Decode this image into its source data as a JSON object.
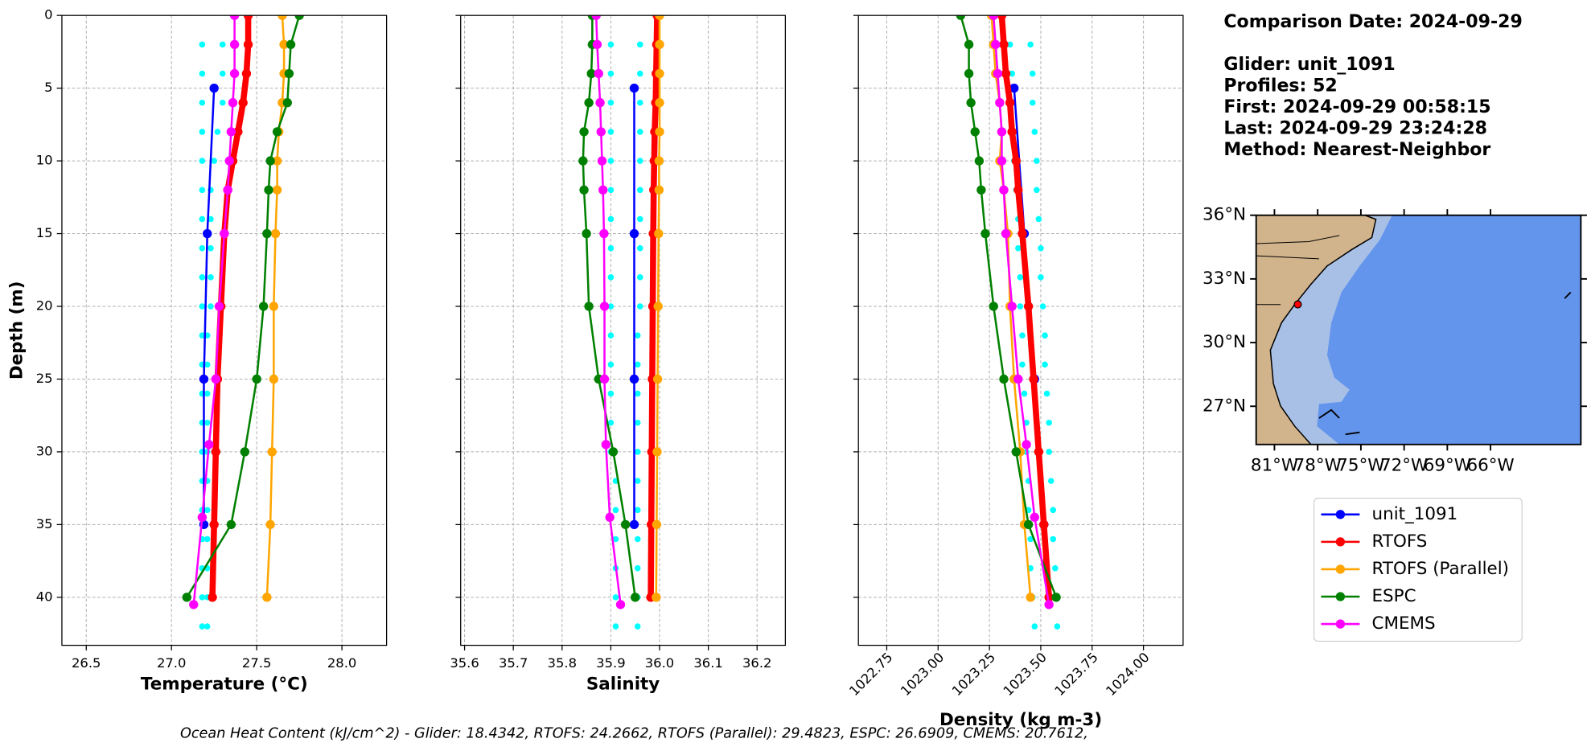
{
  "chart_data": [
    {
      "type": "profile",
      "xlabel": "Temperature (°C)",
      "ylabel": "Depth (m)",
      "xlim": [
        26.357,
        28.262
      ],
      "xticks": [
        26.5,
        {
          "value": 27,
          "label": "27.0"
        },
        27.5,
        {
          "value": 28,
          "label": "28.0"
        }
      ],
      "ylim": [
        43.3,
        0
      ],
      "yticks": [
        0,
        5,
        10,
        15,
        20,
        25,
        30,
        35,
        40
      ],
      "ytick_labels": true,
      "grid": true,
      "raw": [
        {
          "color": "#00ffff",
          "depths": [
            2,
            4,
            6,
            8,
            10,
            12,
            14,
            16,
            18,
            20,
            22,
            24,
            26,
            28,
            30,
            32,
            34,
            36,
            38,
            40,
            42
          ],
          "values": [
            27.18,
            27.18,
            27.18,
            27.18,
            27.18,
            27.18,
            27.18,
            27.18,
            27.18,
            27.18,
            27.18,
            27.18,
            27.18,
            27.18,
            27.18,
            27.18,
            27.18,
            27.18,
            27.18,
            27.18,
            27.18
          ]
        },
        {
          "color": "#00ffff",
          "depths": [
            2,
            4,
            6,
            8,
            10,
            12,
            14,
            16,
            18,
            20,
            22,
            24,
            26,
            28,
            30,
            32,
            34,
            36,
            38,
            40,
            42
          ],
          "values": [
            27.3,
            27.3,
            27.3,
            27.27,
            27.25,
            27.23,
            27.23,
            27.23,
            27.23,
            27.23,
            27.21,
            27.21,
            27.21,
            27.21,
            27.21,
            27.21,
            27.21,
            27.21,
            27.21,
            27.21,
            27.21
          ]
        }
      ],
      "series": [
        {
          "name": "unit_1091",
          "color": "#0000ff",
          "width": 2,
          "depths": [
            5,
            15,
            25,
            35
          ],
          "values": [
            27.25,
            27.21,
            27.19,
            27.19
          ]
        },
        {
          "name": "RTOFS",
          "color": "#ff0000",
          "width": 6,
          "depths": [
            0,
            2,
            4,
            6,
            8,
            10,
            12,
            15,
            20,
            25,
            30,
            35,
            40
          ],
          "values": [
            27.45,
            27.45,
            27.44,
            27.42,
            27.39,
            27.36,
            27.33,
            27.31,
            27.29,
            27.27,
            27.26,
            27.25,
            27.24
          ]
        },
        {
          "name": "RTOFS (Parallel)",
          "color": "#ffa500",
          "width": 2,
          "depths": [
            0,
            2,
            4,
            6,
            8,
            10,
            12,
            15,
            20,
            25,
            30,
            35,
            40
          ],
          "values": [
            27.65,
            27.66,
            27.66,
            27.65,
            27.63,
            27.62,
            27.62,
            27.61,
            27.6,
            27.6,
            27.59,
            27.58,
            27.56
          ]
        },
        {
          "name": "ESPC",
          "color": "#008000",
          "width": 2,
          "depths": [
            0,
            2,
            4,
            6,
            8,
            10,
            12,
            15,
            20,
            25,
            30,
            35,
            40
          ],
          "values": [
            27.75,
            27.7,
            27.69,
            27.68,
            27.62,
            27.58,
            27.57,
            27.56,
            27.54,
            27.5,
            27.43,
            27.35,
            27.09
          ]
        },
        {
          "name": "CMEMS",
          "color": "#ff00ff",
          "width": 2,
          "depths": [
            0,
            2,
            4,
            6,
            8,
            10,
            12,
            15,
            20,
            25,
            29.5,
            34.5,
            40.5
          ],
          "values": [
            27.37,
            27.37,
            27.37,
            27.36,
            27.35,
            27.34,
            27.33,
            27.31,
            27.28,
            27.26,
            27.22,
            27.18,
            27.13
          ]
        }
      ]
    },
    {
      "type": "profile",
      "xlabel": "Salinity",
      "xlim": [
        35.592,
        36.258
      ],
      "xticks": [
        35.6,
        35.7,
        35.8,
        35.9,
        {
          "value": 36,
          "label": "36.0"
        },
        36.1,
        36.2
      ],
      "ylim": [
        43.3,
        0
      ],
      "yticks": [
        0,
        5,
        10,
        15,
        20,
        25,
        30,
        35,
        40
      ],
      "ytick_labels": false,
      "grid": true,
      "raw": [
        {
          "color": "#00ffff",
          "depths": [
            2,
            4,
            6,
            8,
            10,
            12,
            14,
            16,
            18,
            20,
            22,
            24,
            26,
            28,
            30,
            32,
            34,
            36,
            38,
            40,
            42
          ],
          "values": [
            35.9,
            35.9,
            35.9,
            35.9,
            35.9,
            35.9,
            35.9,
            35.9,
            35.9,
            35.9,
            35.9,
            35.9,
            35.9,
            35.9,
            35.9,
            35.91,
            35.91,
            35.91,
            35.91,
            35.91,
            35.91
          ]
        },
        {
          "color": "#00ffff",
          "depths": [
            2,
            4,
            6,
            8,
            10,
            12,
            14,
            16,
            18,
            20,
            22,
            24,
            26,
            28,
            30,
            32,
            34,
            36,
            38,
            40,
            42
          ],
          "values": [
            35.96,
            35.96,
            35.96,
            35.96,
            35.96,
            35.96,
            35.96,
            35.96,
            35.96,
            35.96,
            35.955,
            35.955,
            35.955,
            35.955,
            35.955,
            35.955,
            35.955,
            35.955,
            35.955,
            35.955,
            35.955
          ]
        }
      ],
      "series": [
        {
          "name": "unit_1091",
          "color": "#0000ff",
          "width": 2,
          "depths": [
            5,
            15,
            25,
            35
          ],
          "values": [
            35.948,
            35.948,
            35.948,
            35.948
          ]
        },
        {
          "name": "RTOFS",
          "color": "#ff0000",
          "width": 6,
          "depths": [
            0,
            2,
            4,
            6,
            8,
            10,
            12,
            15,
            20,
            25,
            30,
            35,
            40
          ],
          "values": [
            35.995,
            35.994,
            35.993,
            35.992,
            35.99,
            35.989,
            35.988,
            35.987,
            35.986,
            35.985,
            35.984,
            35.983,
            35.982
          ]
        },
        {
          "name": "RTOFS (Parallel)",
          "color": "#ffa500",
          "width": 2,
          "depths": [
            0,
            2,
            4,
            6,
            8,
            10,
            12,
            15,
            20,
            25,
            30,
            35,
            40
          ],
          "values": [
            36.0,
            36.0,
            36.0,
            36.0,
            36.0,
            35.999,
            35.999,
            35.998,
            35.997,
            35.996,
            35.995,
            35.994,
            35.993
          ]
        },
        {
          "name": "ESPC",
          "color": "#008000",
          "width": 2,
          "depths": [
            0,
            2,
            4,
            6,
            8,
            10,
            12,
            15,
            20,
            25,
            30,
            35,
            40
          ],
          "values": [
            35.862,
            35.862,
            35.86,
            35.855,
            35.845,
            35.843,
            35.845,
            35.85,
            35.855,
            35.875,
            35.905,
            35.93,
            35.95
          ]
        },
        {
          "name": "CMEMS",
          "color": "#ff00ff",
          "width": 2,
          "depths": [
            0,
            2,
            4,
            6,
            8,
            10,
            12,
            15,
            20,
            25,
            29.5,
            34.5,
            40.5
          ],
          "values": [
            35.87,
            35.872,
            35.875,
            35.878,
            35.88,
            35.882,
            35.884,
            35.886,
            35.887,
            35.887,
            35.89,
            35.898,
            35.92
          ]
        }
      ]
    },
    {
      "type": "profile",
      "xlabel": "Density (kg m-3)",
      "xtick_rotation": -45,
      "xlim": [
        1022.612,
        1024.193
      ],
      "xticks": [
        1022.75,
        {
          "value": 1023,
          "label": "1023.00"
        },
        1023.25,
        {
          "value": 1023.5,
          "label": "1023.50"
        },
        1023.75,
        {
          "value": 1024,
          "label": "1024.00"
        }
      ],
      "ylim": [
        43.3,
        0
      ],
      "yticks": [
        0,
        5,
        10,
        15,
        20,
        25,
        30,
        35,
        40
      ],
      "ytick_labels": false,
      "grid": true,
      "raw": [
        {
          "color": "#00ffff",
          "depths": [
            2,
            4,
            6,
            8,
            10,
            12,
            14,
            16,
            18,
            20,
            22,
            24,
            26,
            28,
            30,
            32,
            34,
            36,
            38,
            40,
            42
          ],
          "values": [
            1023.35,
            1023.36,
            1023.36,
            1023.37,
            1023.37,
            1023.38,
            1023.39,
            1023.39,
            1023.4,
            1023.4,
            1023.41,
            1023.41,
            1023.42,
            1023.43,
            1023.43,
            1023.44,
            1023.44,
            1023.45,
            1023.45,
            1023.46,
            1023.47
          ]
        },
        {
          "color": "#00ffff",
          "depths": [
            2,
            4,
            6,
            8,
            10,
            12,
            14,
            16,
            18,
            20,
            22,
            24,
            26,
            28,
            30,
            32,
            34,
            36,
            38,
            40,
            42
          ],
          "values": [
            1023.45,
            1023.46,
            1023.46,
            1023.47,
            1023.48,
            1023.48,
            1023.49,
            1023.5,
            1023.5,
            1023.51,
            1023.52,
            1023.52,
            1023.53,
            1023.54,
            1023.54,
            1023.55,
            1023.56,
            1023.56,
            1023.57,
            1023.57,
            1023.58
          ]
        }
      ],
      "series": [
        {
          "name": "unit_1091",
          "color": "#0000ff",
          "width": 2,
          "depths": [
            5,
            15,
            25,
            35
          ],
          "values": [
            1023.37,
            1023.42,
            1023.47,
            1023.515
          ]
        },
        {
          "name": "RTOFS",
          "color": "#ff0000",
          "width": 6,
          "depths": [
            0,
            2,
            4,
            6,
            8,
            10,
            12,
            15,
            20,
            25,
            30,
            35,
            40
          ],
          "values": [
            1023.31,
            1023.32,
            1023.33,
            1023.35,
            1023.36,
            1023.38,
            1023.39,
            1023.41,
            1023.44,
            1023.465,
            1023.49,
            1023.515,
            1023.54
          ]
        },
        {
          "name": "RTOFS (Parallel)",
          "color": "#ffa500",
          "width": 2,
          "depths": [
            0,
            2,
            4,
            6,
            8,
            10,
            12,
            15,
            20,
            25,
            30,
            35,
            40
          ],
          "values": [
            1023.26,
            1023.27,
            1023.28,
            1023.3,
            1023.31,
            1023.3,
            1023.32,
            1023.34,
            1023.35,
            1023.37,
            1023.4,
            1023.42,
            1023.45
          ]
        },
        {
          "name": "ESPC",
          "color": "#008000",
          "width": 2,
          "depths": [
            0,
            2,
            4,
            6,
            8,
            10,
            12,
            15,
            20,
            25,
            30,
            35,
            40
          ],
          "values": [
            1023.11,
            1023.15,
            1023.15,
            1023.16,
            1023.18,
            1023.2,
            1023.21,
            1023.23,
            1023.27,
            1023.32,
            1023.38,
            1023.44,
            1023.575
          ]
        },
        {
          "name": "CMEMS",
          "color": "#ff00ff",
          "width": 2,
          "depths": [
            0,
            2,
            4,
            6,
            8,
            10,
            12,
            15,
            20,
            25,
            29.5,
            34.5,
            40.5
          ],
          "values": [
            1023.27,
            1023.28,
            1023.29,
            1023.3,
            1023.31,
            1023.31,
            1023.32,
            1023.33,
            1023.36,
            1023.39,
            1023.43,
            1023.47,
            1023.54
          ]
        }
      ]
    },
    {
      "type": "map",
      "xlim": [
        -82.27,
        -59.73
      ],
      "xticks": [
        {
          "value": -81,
          "label": "81°W"
        },
        {
          "value": -78,
          "label": "78°W"
        },
        {
          "value": -75,
          "label": "75°W"
        },
        {
          "value": -72,
          "label": "72°W"
        },
        {
          "value": -69,
          "label": "69°W"
        },
        {
          "value": -66,
          "label": "66°W"
        }
      ],
      "ylim": [
        25.2,
        36
      ],
      "yticks": [
        {
          "value": 27,
          "label": "27°N"
        },
        {
          "value": 30,
          "label": "30°N"
        },
        {
          "value": 33,
          "label": "33°N"
        },
        {
          "value": 36,
          "label": "36°N"
        }
      ],
      "points": {
        "color": "#ff0000",
        "lon": [
          -79.38
        ],
        "lat": [
          31.8
        ]
      }
    }
  ],
  "info": {
    "date": "Comparison Date: 2024-09-29",
    "lines": [
      "Glider: unit_1091",
      "Profiles: 52",
      "First: 2024-09-29 00:58:15",
      "Last: 2024-09-29 23:24:28",
      "Method: Nearest-Neighbor"
    ]
  },
  "footer": "Ocean Heat Content (kJ/cm^2) - Glider: 18.4342,  RTOFS: 24.2662,  RTOFS (Parallel): 29.4823,  ESPC: 26.6909,  CMEMS: 20.7612,"
}
